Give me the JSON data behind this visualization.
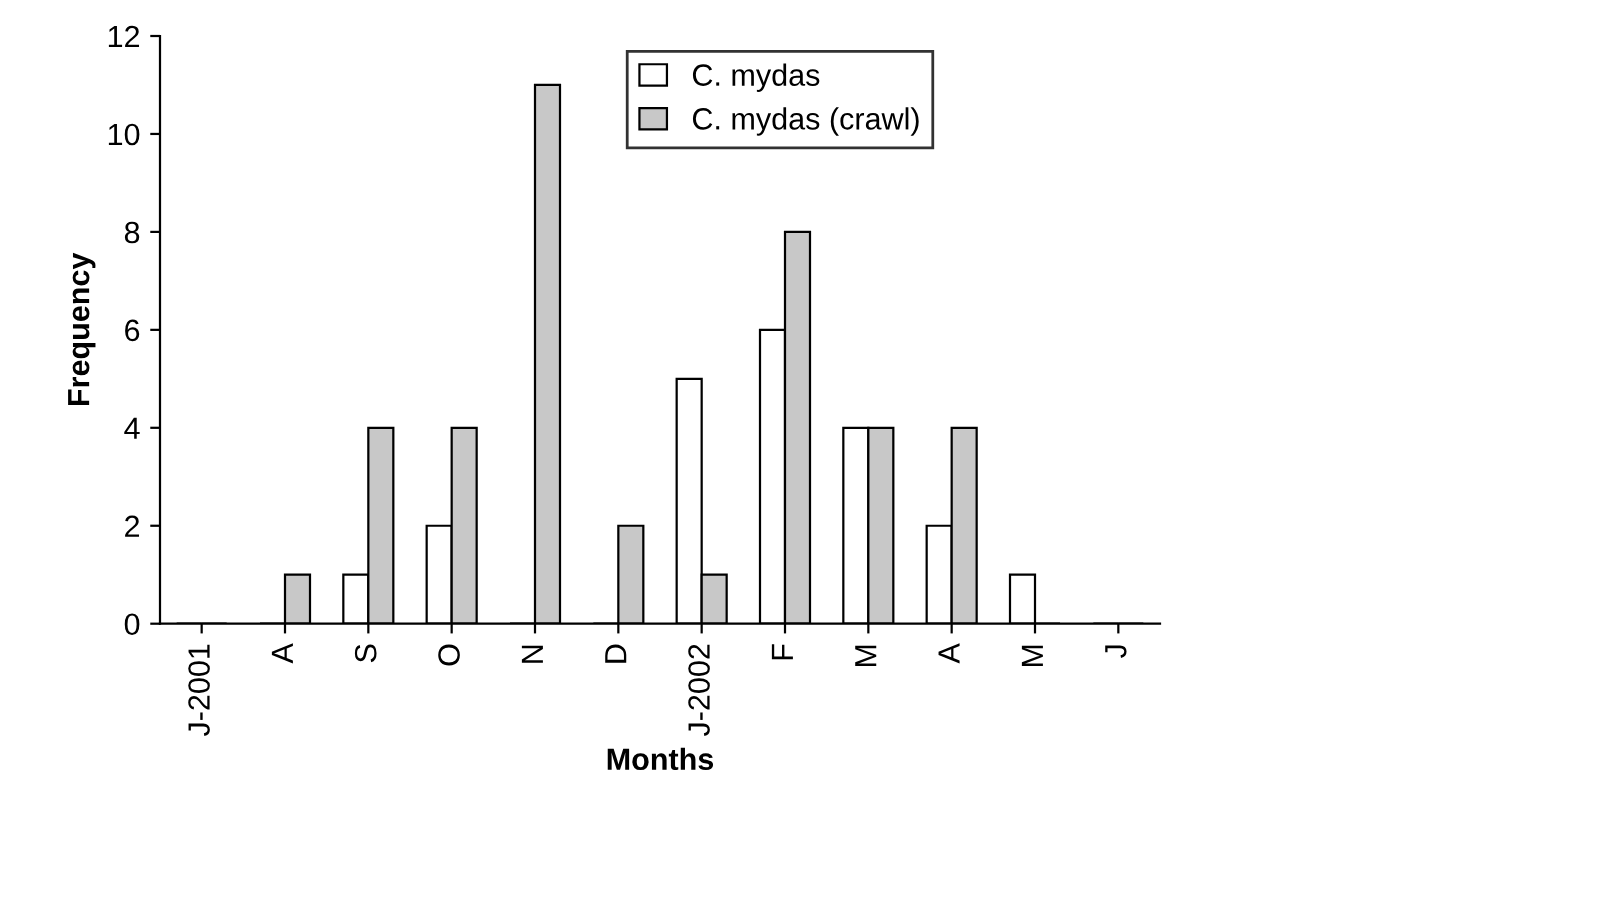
{
  "chart_data": {
    "type": "bar",
    "xlabel": "Months",
    "ylabel": "Frequency",
    "categories": [
      "J-2001",
      "A",
      "S",
      "O",
      "N",
      "D",
      "J-2002",
      "F",
      "M",
      "A",
      "M",
      "J"
    ],
    "series": [
      {
        "name": "C. mydas",
        "color": "#ffffff",
        "values": [
          0,
          0,
          1,
          2,
          0,
          0,
          5,
          6,
          4,
          2,
          1,
          0
        ]
      },
      {
        "name": "C. mydas (crawl)",
        "color": "#c8c8c8",
        "values": [
          0,
          1,
          4,
          4,
          11,
          2,
          1,
          8,
          4,
          4,
          0,
          0
        ]
      }
    ],
    "ylim": [
      0,
      12
    ],
    "yticks": [
      0,
      2,
      4,
      6,
      8,
      10,
      12
    ],
    "grid": false,
    "legend": "top"
  }
}
